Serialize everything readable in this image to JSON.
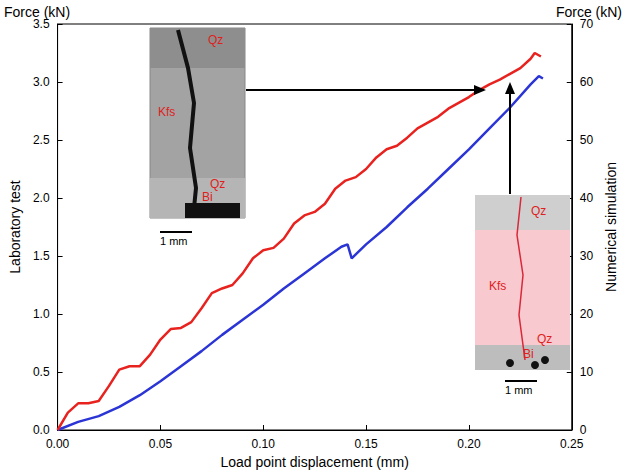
{
  "chart_data": {
    "type": "line",
    "x_label": "Load point displacement (mm)",
    "y_label": "Laboratory test",
    "y_unit_label": "Force (kN)",
    "y2_label": "Numerical simulation",
    "y2_unit_label": "Force (kN)",
    "xlim": [
      0,
      0.25
    ],
    "xticks": [
      {
        "value": 0,
        "label": "0.00"
      },
      {
        "value": 0.05,
        "label": "0.05"
      },
      {
        "value": 0.1,
        "label": "0.10"
      },
      {
        "value": 0.15,
        "label": "0.15"
      },
      {
        "value": 0.2,
        "label": "0.20"
      },
      {
        "value": 0.25,
        "label": "0.25"
      }
    ],
    "ylim": [
      0,
      3.5
    ],
    "yticks": [
      {
        "value": 0,
        "label": "0.0"
      },
      {
        "value": 0.5,
        "label": "0.5"
      },
      {
        "value": 1,
        "label": "1.0"
      },
      {
        "value": 1.5,
        "label": "1.5"
      },
      {
        "value": 2,
        "label": "2.0"
      },
      {
        "value": 2.5,
        "label": "2.5"
      },
      {
        "value": 3,
        "label": "3.0"
      },
      {
        "value": 3.5,
        "label": "3.5"
      }
    ],
    "y2lim": [
      0,
      70
    ],
    "y2ticks": [
      0,
      10,
      20,
      30,
      40,
      50,
      60,
      70
    ],
    "grid": false,
    "series": [
      {
        "color": "#2b35d6",
        "x": [
          0,
          0.01,
          0.02,
          0.03,
          0.04,
          0.05,
          0.06,
          0.07,
          0.08,
          0.09,
          0.1,
          0.11,
          0.12,
          0.13,
          0.138,
          0.141,
          0.143,
          0.15,
          0.16,
          0.17,
          0.18,
          0.19,
          0.2,
          0.21,
          0.22,
          0.23,
          0.234,
          0.236
        ],
        "values": [
          0,
          0.07,
          0.12,
          0.2,
          0.3,
          0.42,
          0.55,
          0.68,
          0.82,
          0.95,
          1.08,
          1.22,
          1.35,
          1.48,
          1.58,
          1.6,
          1.48,
          1.6,
          1.75,
          1.92,
          2.08,
          2.25,
          2.42,
          2.6,
          2.78,
          2.98,
          3.05,
          3.03
        ]
      },
      {
        "color": "#e8231f",
        "axis": "y2",
        "x": [
          0,
          0.005,
          0.01,
          0.015,
          0.02,
          0.025,
          0.03,
          0.035,
          0.04,
          0.045,
          0.05,
          0.055,
          0.06,
          0.065,
          0.07,
          0.075,
          0.08,
          0.085,
          0.09,
          0.095,
          0.1,
          0.105,
          0.11,
          0.115,
          0.12,
          0.125,
          0.13,
          0.135,
          0.14,
          0.145,
          0.15,
          0.155,
          0.16,
          0.165,
          0.17,
          0.175,
          0.18,
          0.185,
          0.19,
          0.195,
          0.2,
          0.205,
          0.21,
          0.215,
          0.22,
          0.225,
          0.23,
          0.232,
          0.235
        ],
        "values": [
          0,
          3,
          4.6,
          4.6,
          5,
          7.6,
          10.4,
          11,
          11,
          13,
          15.6,
          17.4,
          17.6,
          18.6,
          21,
          23.6,
          24.4,
          25,
          27,
          29.6,
          31,
          31.4,
          33,
          35.6,
          37,
          37.6,
          39,
          41.6,
          43,
          43.6,
          45,
          47,
          48.4,
          49,
          50.4,
          52,
          53,
          54,
          55.4,
          56.4,
          57.4,
          58.6,
          59.6,
          60.4,
          61.4,
          62.4,
          64,
          65,
          64.4
        ]
      }
    ],
    "annotations": [
      {
        "labels": [
          "Qz",
          "Kfs",
          "Qz",
          "Bi"
        ],
        "scale_bar": "1 mm"
      },
      {
        "labels": [
          "Qz",
          "Kfs",
          "Qz",
          "Bi"
        ],
        "scale_bar": "1 mm"
      }
    ]
  }
}
